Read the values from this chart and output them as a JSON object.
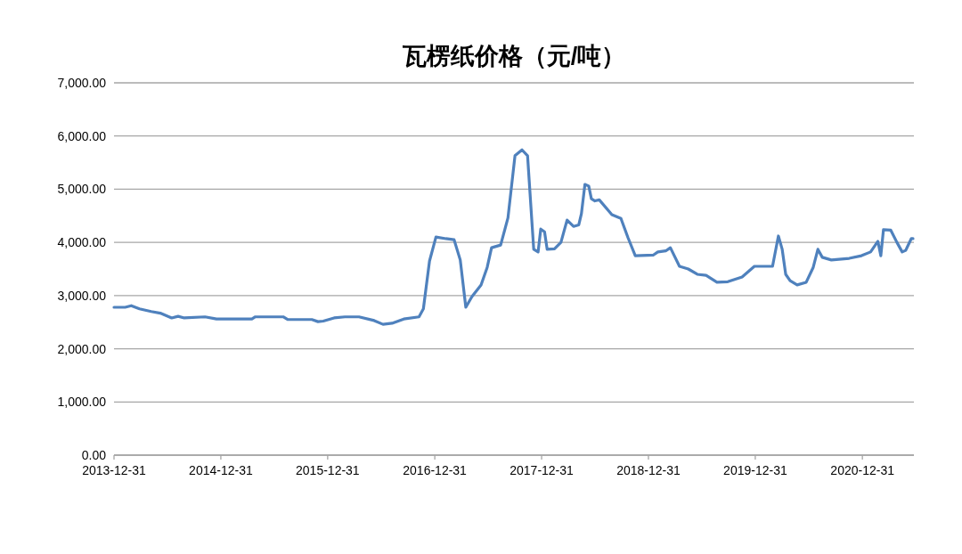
{
  "chart_data": {
    "type": "line",
    "title": "瓦楞纸价格（元/吨）",
    "x": [
      "2013-12-31",
      "2014-02-07",
      "2014-02-28",
      "2014-03-28",
      "2014-05-07",
      "2014-06-07",
      "2014-07-16",
      "2014-08-07",
      "2014-08-28",
      "2014-11-07",
      "2014-12-16",
      "2015-04-16",
      "2015-04-28",
      "2015-08-01",
      "2015-08-16",
      "2015-11-07",
      "2015-11-28",
      "2015-12-16",
      "2016-01-22",
      "2016-02-28",
      "2016-04-16",
      "2016-06-07",
      "2016-07-07",
      "2016-08-07",
      "2016-09-16",
      "2016-11-07",
      "2016-11-22",
      "2016-12-13",
      "2017-01-04",
      "2017-02-07",
      "2017-03-07",
      "2017-03-28",
      "2017-04-16",
      "2017-05-07",
      "2017-06-07",
      "2017-06-28",
      "2017-07-13",
      "2017-08-13",
      "2017-09-07",
      "2017-10-01",
      "2017-10-25",
      "2017-11-13",
      "2017-12-04",
      "2017-12-19",
      "2017-12-28",
      "2018-01-10",
      "2018-01-19",
      "2018-02-13",
      "2018-03-07",
      "2018-03-28",
      "2018-04-19",
      "2018-05-07",
      "2018-05-16",
      "2018-05-28",
      "2018-06-10",
      "2018-06-19",
      "2018-07-01",
      "2018-07-16",
      "2018-08-28",
      "2018-09-28",
      "2018-10-22",
      "2018-11-16",
      "2019-01-16",
      "2019-02-01",
      "2019-02-28",
      "2019-03-16",
      "2019-04-16",
      "2019-05-16",
      "2019-06-16",
      "2019-07-16",
      "2019-08-22",
      "2019-09-28",
      "2019-11-16",
      "2019-12-28",
      "2020-02-28",
      "2020-03-19",
      "2020-04-01",
      "2020-04-13",
      "2020-04-28",
      "2020-05-22",
      "2020-06-22",
      "2020-07-16",
      "2020-08-01",
      "2020-08-16",
      "2020-09-16",
      "2020-11-16",
      "2020-12-28",
      "2021-01-28",
      "2021-02-22",
      "2021-03-04",
      "2021-03-13",
      "2021-04-07",
      "2021-04-28",
      "2021-05-16",
      "2021-05-28",
      "2021-06-16",
      "2021-06-22"
    ],
    "series": [
      {
        "color": "#4f81bd",
        "values": [
          2780,
          2780,
          2810,
          2750,
          2700,
          2670,
          2580,
          2610,
          2580,
          2600,
          2560,
          2560,
          2600,
          2600,
          2550,
          2550,
          2510,
          2520,
          2580,
          2600,
          2600,
          2530,
          2460,
          2480,
          2560,
          2600,
          2750,
          3650,
          4100,
          4070,
          4050,
          3670,
          2780,
          2980,
          3200,
          3530,
          3900,
          3950,
          4460,
          5630,
          5740,
          5630,
          3870,
          3820,
          4250,
          4200,
          3870,
          3880,
          4000,
          4420,
          4300,
          4330,
          4540,
          5090,
          5060,
          4820,
          4780,
          4800,
          4520,
          4450,
          4090,
          3750,
          3760,
          3820,
          3840,
          3900,
          3550,
          3500,
          3400,
          3380,
          3250,
          3260,
          3350,
          3550,
          3550,
          4120,
          3870,
          3400,
          3280,
          3200,
          3250,
          3530,
          3870,
          3720,
          3670,
          3700,
          3750,
          3820,
          4020,
          3750,
          4240,
          4230,
          4000,
          3820,
          3850,
          4070,
          4070
        ]
      }
    ],
    "xlim": [
      "2013-12-31",
      "2021-06-25"
    ],
    "xticks": [
      "2013-12-31",
      "2014-12-31",
      "2015-12-31",
      "2016-12-31",
      "2017-12-31",
      "2018-12-31",
      "2019-12-31",
      "2020-12-31"
    ],
    "ylim": [
      0,
      7000
    ],
    "yticks": [
      {
        "value": 0,
        "label": "0.00"
      },
      {
        "value": 1000,
        "label": "1,000.00"
      },
      {
        "value": 2000,
        "label": "2,000.00"
      },
      {
        "value": 3000,
        "label": "3,000.00"
      },
      {
        "value": 4000,
        "label": "4,000.00"
      },
      {
        "value": 5000,
        "label": "5,000.00"
      },
      {
        "value": 6000,
        "label": "6,000.00"
      },
      {
        "value": 7000,
        "label": "7,000.00"
      }
    ],
    "grid": "y",
    "marker": "none",
    "line_style": "solid"
  }
}
